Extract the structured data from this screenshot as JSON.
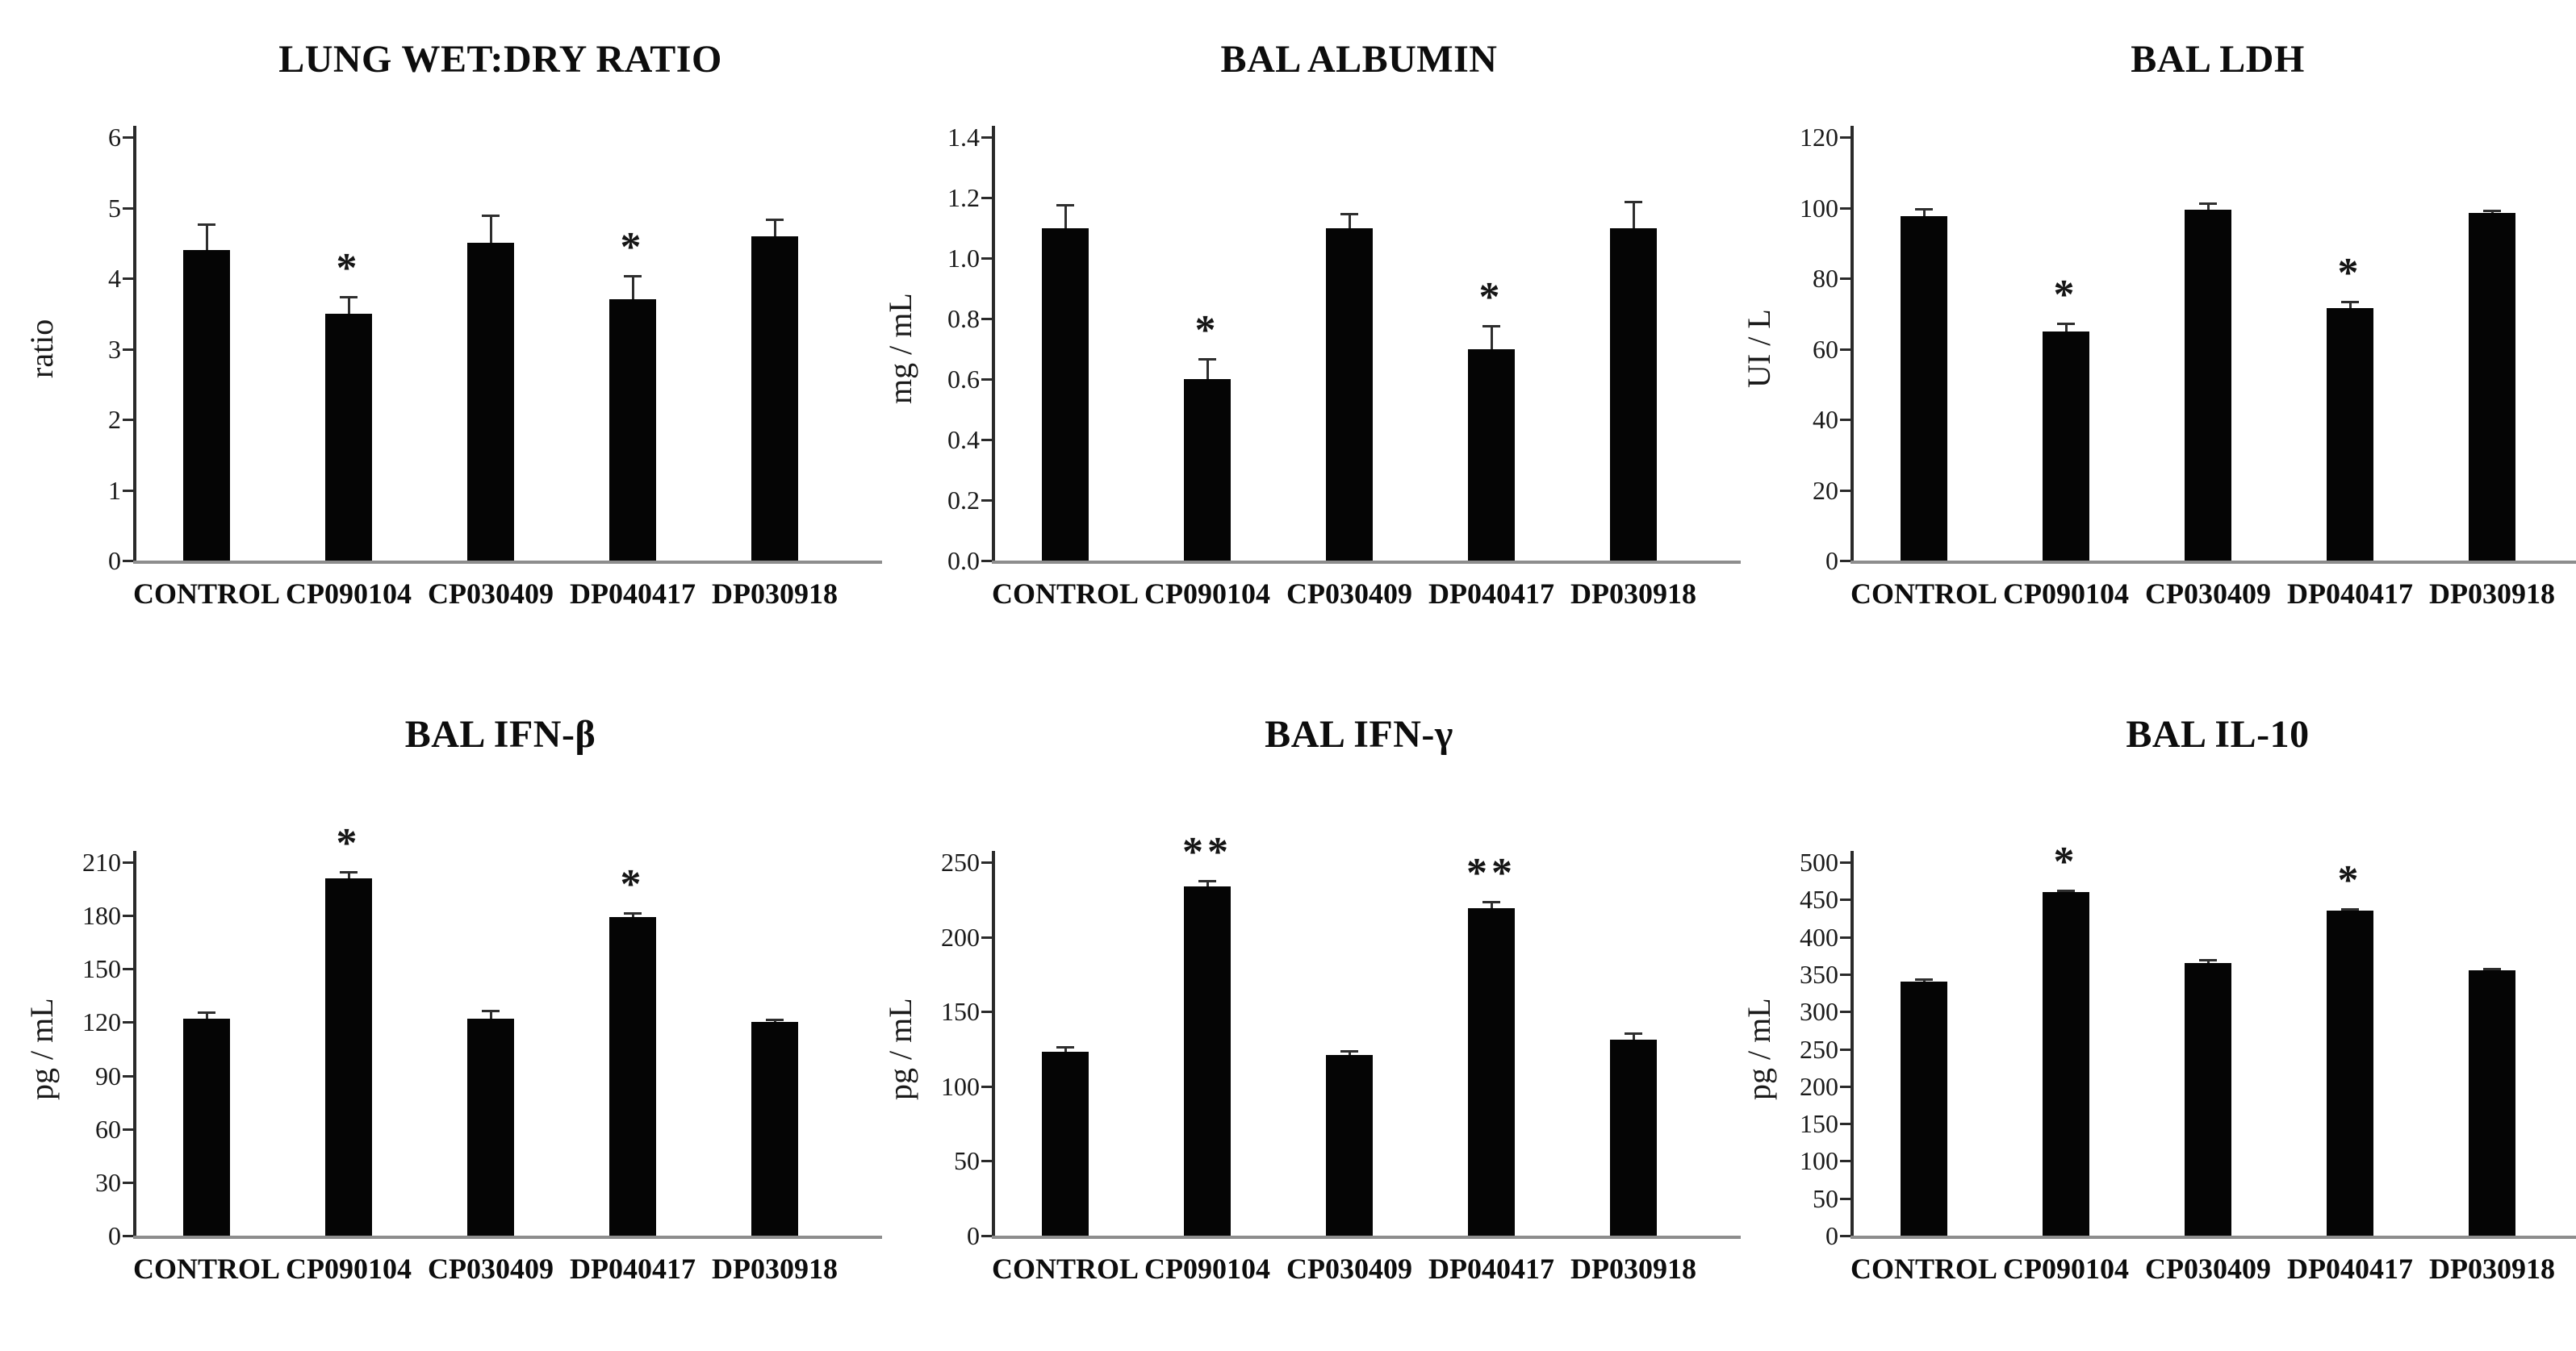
{
  "figure": {
    "background": "#ffffff",
    "bar_color": "#050505",
    "axis_color": "#2a2a2a",
    "baseline_color": "#8d8d8d",
    "error_bar_color": "#2e2e2e",
    "text_color": "#0d0d0d"
  },
  "chart_data": [
    {
      "type": "bar",
      "title": "LUNG WET:DRY RATIO",
      "ylabel": "ratio",
      "ylim": [
        0,
        6
      ],
      "yticks": [
        "0",
        "1",
        "2",
        "3",
        "4",
        "5",
        "6"
      ],
      "categories": [
        "CONTROL",
        "CP090104",
        "CP030409",
        "DP040417",
        "DP030918"
      ],
      "values": [
        4.4,
        3.5,
        4.5,
        3.7,
        4.6
      ],
      "errors": [
        0.38,
        0.25,
        0.4,
        0.35,
        0.25
      ],
      "significance": [
        "",
        "*",
        "",
        "*",
        ""
      ],
      "grid": false,
      "legend": false
    },
    {
      "type": "bar",
      "title": "BAL ALBUMIN",
      "ylabel": "mg / mL",
      "ylim": [
        0,
        1.4
      ],
      "yticks": [
        "0.0",
        "0.2",
        "0.4",
        "0.6",
        "0.8",
        "1.0",
        "1.2",
        "1.4"
      ],
      "categories": [
        "CONTROL",
        "CP090104",
        "CP030409",
        "DP040417",
        "DP030918"
      ],
      "values": [
        1.1,
        0.6,
        1.1,
        0.7,
        1.1
      ],
      "errors": [
        0.08,
        0.07,
        0.05,
        0.08,
        0.09
      ],
      "significance": [
        "",
        "*",
        "",
        "*",
        ""
      ],
      "grid": false,
      "legend": false
    },
    {
      "type": "bar",
      "title": "BAL LDH",
      "ylabel": "UI / L",
      "ylim": [
        0,
        120
      ],
      "yticks": [
        "0",
        "20",
        "40",
        "60",
        "80",
        "100",
        "120"
      ],
      "categories": [
        "CONTROL",
        "CP090104",
        "CP030409",
        "DP040417",
        "DP030918"
      ],
      "values": [
        97.5,
        65,
        99.5,
        71.5,
        98.5
      ],
      "errors": [
        2.5,
        2.5,
        2,
        2,
        1
      ],
      "significance": [
        "",
        "*",
        "",
        "*",
        ""
      ],
      "grid": false,
      "legend": false
    },
    {
      "type": "bar",
      "title": "BAL IFN-β",
      "ylabel": "pg / mL",
      "ylim": [
        0,
        210
      ],
      "yticks": [
        "0",
        "30",
        "60",
        "90",
        "120",
        "150",
        "180",
        "210"
      ],
      "categories": [
        "CONTROL",
        "CP090104",
        "CP030409",
        "DP040417",
        "DP030918"
      ],
      "values": [
        122,
        201,
        122,
        179,
        120
      ],
      "errors": [
        4,
        4,
        5,
        3,
        2
      ],
      "significance": [
        "",
        "*",
        "",
        "*",
        ""
      ],
      "grid": false,
      "legend": false
    },
    {
      "type": "bar",
      "title": "BAL IFN-γ",
      "ylabel": "pg / mL",
      "ylim": [
        0,
        250
      ],
      "yticks": [
        "0",
        "50",
        "100",
        "150",
        "200",
        "250"
      ],
      "categories": [
        "CONTROL",
        "CP090104",
        "CP030409",
        "DP040417",
        "DP030918"
      ],
      "values": [
        123,
        234,
        121,
        219,
        131
      ],
      "errors": [
        4,
        4,
        3,
        5,
        5
      ],
      "significance": [
        "",
        "**",
        "",
        "**",
        ""
      ],
      "grid": false,
      "legend": false
    },
    {
      "type": "bar",
      "title": "BAL IL-10",
      "ylabel": "pg / mL",
      "ylim": [
        0,
        500
      ],
      "yticks": [
        "0",
        "50",
        "100",
        "150",
        "200",
        "250",
        "300",
        "350",
        "400",
        "450",
        "500"
      ],
      "categories": [
        "CONTROL",
        "CP090104",
        "CP030409",
        "DP040417",
        "DP030918"
      ],
      "values": [
        340,
        460,
        365,
        435,
        355
      ],
      "errors": [
        4,
        3,
        5,
        3,
        4
      ],
      "significance": [
        "",
        "*",
        "",
        "*",
        ""
      ],
      "grid": false,
      "legend": false
    }
  ]
}
